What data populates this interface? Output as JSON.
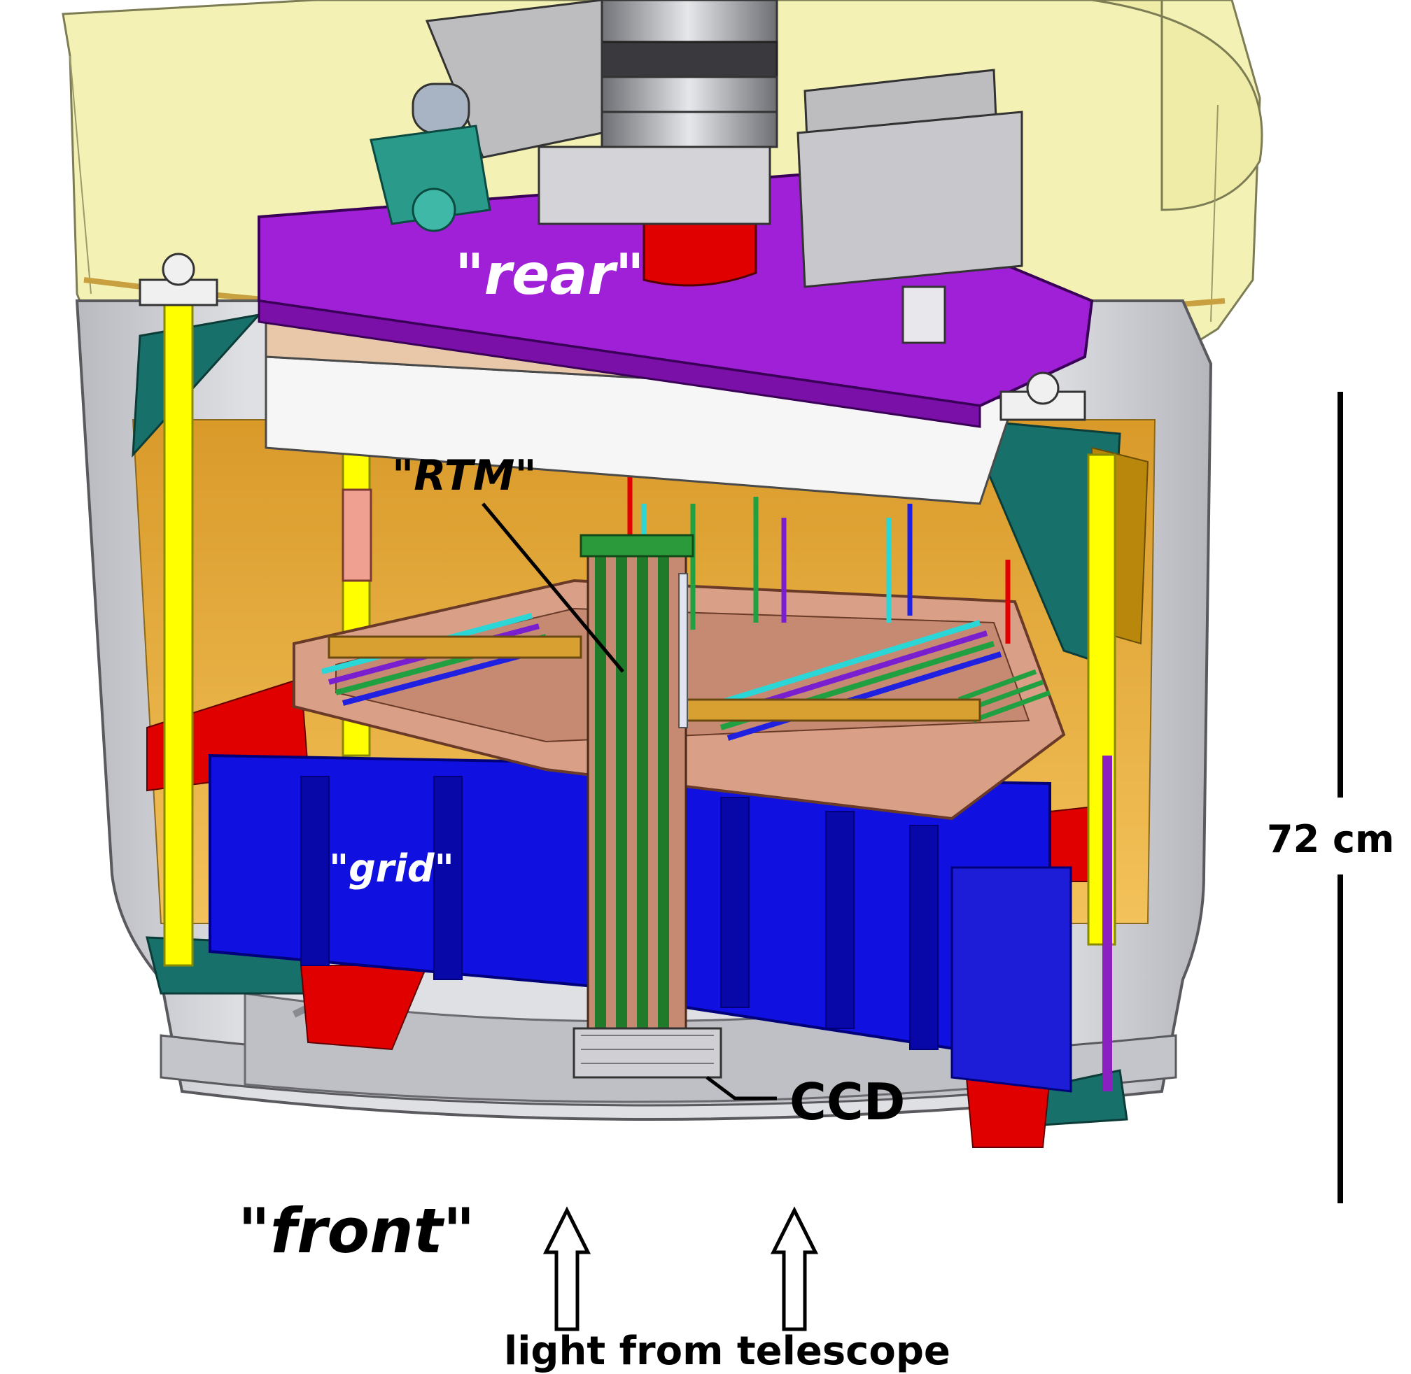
{
  "labels": {
    "rear": "\"rear\"",
    "rtm": "\"RTM\"",
    "grid": "\"grid\"",
    "ccd": "CCD",
    "front": "\"front\"",
    "light": "light from telescope",
    "scale": "72 cm"
  },
  "colors": {
    "housing_yellow": "#f3f2b4",
    "rear_plate_purple": "#a020d8",
    "grid_blue": "#1010e0",
    "red_parts": "#e00000",
    "copper_frame": "#d9a087",
    "cryostat_gray": "#cfd0d4",
    "inner_amber": "#e6a83c",
    "rod_yellow": "#ffff00",
    "rtm_green": "#1f7a2a",
    "teal_panel": "#17706a"
  }
}
